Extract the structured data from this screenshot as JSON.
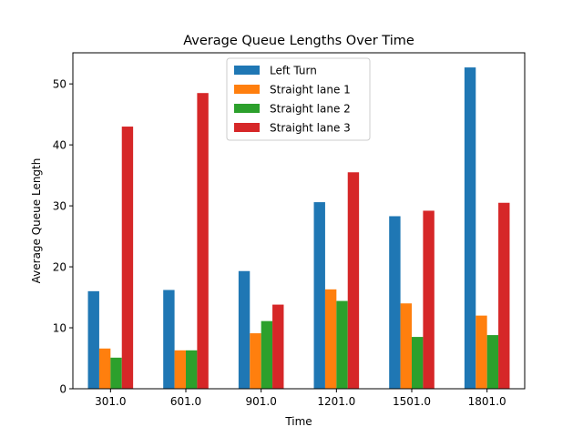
{
  "chart_data": {
    "type": "bar",
    "title": "Average Queue Lengths Over Time",
    "xlabel": "Time",
    "ylabel": "Average Queue Length",
    "categories": [
      "301.0",
      "601.0",
      "901.0",
      "1201.0",
      "1501.0",
      "1801.0"
    ],
    "ylim": [
      0,
      55.1
    ],
    "yticks": [
      0,
      10,
      20,
      30,
      40,
      50
    ],
    "grid": false,
    "legend_position": "top-center",
    "series": [
      {
        "name": "Left Turn",
        "color": "#1f77b4",
        "values": [
          16.0,
          16.2,
          19.3,
          30.6,
          28.3,
          52.7
        ]
      },
      {
        "name": "Straight lane 1",
        "color": "#ff7f0e",
        "values": [
          6.6,
          6.3,
          9.1,
          16.3,
          14.0,
          12.0
        ]
      },
      {
        "name": "Straight lane 2",
        "color": "#2ca02c",
        "values": [
          5.1,
          6.3,
          11.1,
          14.4,
          8.5,
          8.8
        ]
      },
      {
        "name": "Straight lane 3",
        "color": "#d62728",
        "values": [
          43.0,
          48.5,
          13.8,
          35.5,
          29.2,
          30.5
        ]
      }
    ]
  }
}
